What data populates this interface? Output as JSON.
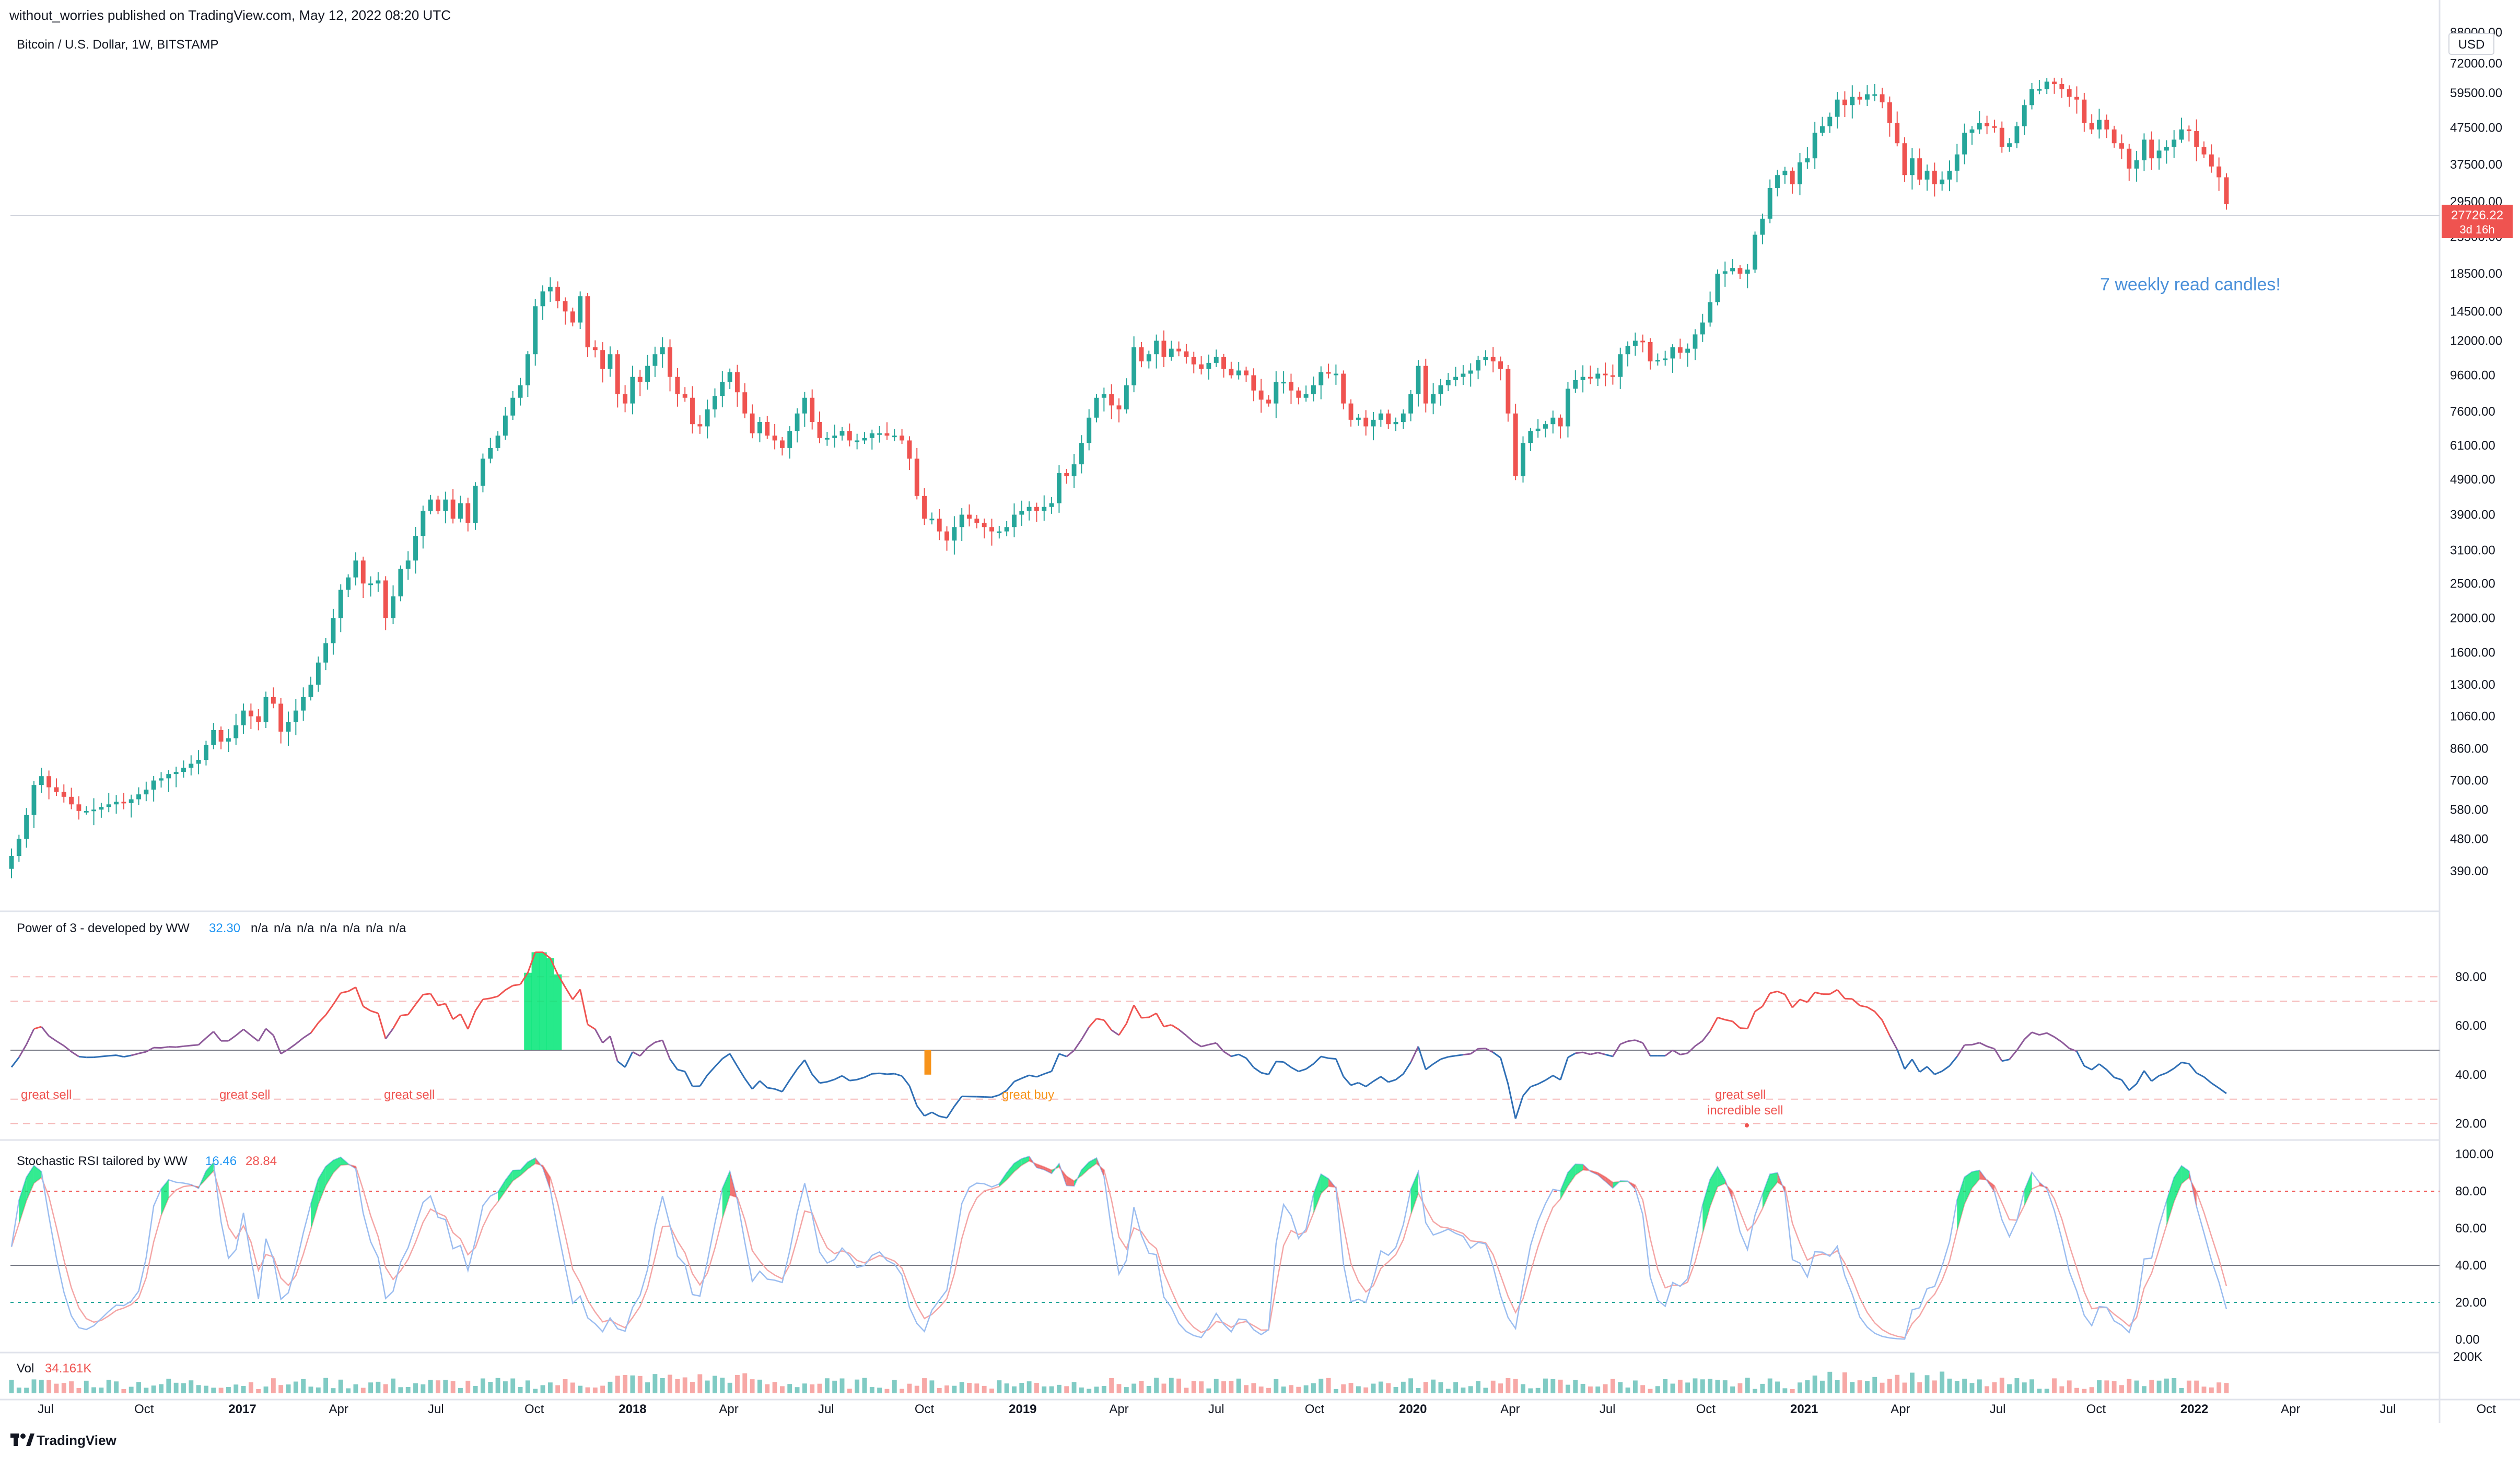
{
  "header": {
    "published": "without_worries published on TradingView.com, May 12, 2022 08:20 UTC",
    "symbol": "Bitcoin / U.S. Dollar, 1W, BITSTAMP",
    "currency": "USD"
  },
  "price_panel": {
    "last_price": "27726.22",
    "countdown": "3d 16h",
    "annotation": "7 weekly read candles!",
    "axis_labels": [
      "88000.00",
      "72000.00",
      "59500.00",
      "47500.00",
      "37500.00",
      "29500.00",
      "23500.00",
      "18500.00",
      "14500.00",
      "12000.00",
      "9600.00",
      "7600.00",
      "6100.00",
      "4900.00",
      "3900.00",
      "3100.00",
      "2500.00",
      "2000.00",
      "1600.00",
      "1300.00",
      "1060.00",
      "860.00",
      "700.00",
      "580.00",
      "480.00",
      "390.00"
    ]
  },
  "power_panel": {
    "title": "Power of 3 - developed by WW",
    "value": "32.30",
    "na": [
      "n/a",
      "n/a",
      "n/a",
      "n/a",
      "n/a",
      "n/a",
      "n/a"
    ],
    "axis_labels": [
      "80.00",
      "60.00",
      "40.00",
      "20.00"
    ],
    "annotations": {
      "sell1": "great sell",
      "sell2": "great sell",
      "sell3": "great sell",
      "buy": "great buy",
      "sell4": "great sell",
      "incredible": "incredible sell"
    }
  },
  "stoch_panel": {
    "title": "Stochastic RSI tailored by WW",
    "k": "16.46",
    "d": "28.84",
    "axis_labels": [
      "100.00",
      "80.00",
      "60.00",
      "40.00",
      "20.00",
      "0.00"
    ]
  },
  "volume_panel": {
    "title": "Vol",
    "value": "34.161K",
    "axis_label": "200K"
  },
  "time_axis": [
    "Jul",
    "Oct",
    "2017",
    "Apr",
    "Jul",
    "Oct",
    "2018",
    "Apr",
    "Jul",
    "Oct",
    "2019",
    "Apr",
    "Jul",
    "Oct",
    "2020",
    "Apr",
    "Jul",
    "Oct",
    "2021",
    "Apr",
    "Jul",
    "Oct",
    "2022",
    "Apr",
    "Jul",
    "Oct"
  ],
  "footer": {
    "brand": "TradingView"
  },
  "colors": {
    "up": "#26a69a",
    "down": "#ef5350",
    "accent": "#2962ff",
    "annotation": "#4a90d9",
    "buy": "#f7931a"
  },
  "chart_data": [
    {
      "type": "candlestick",
      "title": "Bitcoin / U.S. Dollar, 1W, BITSTAMP",
      "ylim": [
        350,
        88000
      ],
      "y_scale": "log",
      "x_start": "2016-05-30",
      "x_interval": "1W",
      "close": [
        430,
        480,
        560,
        680,
        720,
        670,
        650,
        630,
        600,
        575,
        575,
        580,
        590,
        600,
        610,
        605,
        620,
        640,
        660,
        700,
        710,
        730,
        740,
        760,
        780,
        800,
        880,
        970,
        900,
        920,
        1000,
        1100,
        1060,
        1020,
        1200,
        1150,
        960,
        1020,
        1100,
        1200,
        1300,
        1500,
        1700,
        2000,
        2400,
        2600,
        2900,
        2500,
        2500,
        2550,
        2000,
        2300,
        2750,
        2900,
        3400,
        4000,
        4300,
        4000,
        4300,
        3800,
        4200,
        3700,
        4700,
        5600,
        6000,
        6500,
        7400,
        8300,
        9000,
        11000,
        15000,
        16500,
        17000,
        15500,
        14500,
        13500,
        16000,
        11500,
        11300,
        10000,
        11000,
        8500,
        8000,
        9500,
        9200,
        10200,
        11000,
        11500,
        9500,
        8500,
        8300,
        7000,
        6900,
        7700,
        8400,
        9200,
        9800,
        8600,
        7500,
        6600,
        7100,
        6500,
        6300,
        6000,
        6700,
        7500,
        8300,
        7100,
        6400,
        6400,
        6500,
        6700,
        6300,
        6300,
        6400,
        6600,
        6600,
        6500,
        6500,
        6300,
        5600,
        4400,
        3800,
        3800,
        3500,
        3300,
        3600,
        3900,
        3800,
        3700,
        3600,
        3500,
        3500,
        3600,
        3900,
        4000,
        4100,
        4000,
        4100,
        4200,
        5100,
        5000,
        5400,
        6200,
        7300,
        8300,
        8500,
        7900,
        7700,
        9000,
        11500,
        10500,
        11000,
        12000,
        10800,
        11400,
        11200,
        10800,
        10300,
        10000,
        10400,
        10800,
        10000,
        9600,
        9900,
        9600,
        8700,
        8200,
        8000,
        9200,
        9200,
        8700,
        8300,
        8500,
        9000,
        9800,
        9700,
        9700,
        8000,
        7200,
        7300,
        6900,
        7200,
        7500,
        7000,
        7100,
        7500,
        8500,
        10200,
        8000,
        8500,
        9000,
        9300,
        9500,
        9700,
        9900,
        10600,
        10800,
        10500,
        10000,
        7500,
        5000,
        6200,
        6700,
        6800,
        7000,
        7300,
        6900,
        8800,
        9300,
        9500,
        9400,
        9700,
        9600,
        9500,
        11000,
        11600,
        12000,
        11900,
        10500,
        10600,
        10700,
        11500,
        11100,
        11400,
        12500,
        13500,
        15400,
        18500,
        18800,
        19200,
        18500,
        19000,
        23800,
        26400,
        32200,
        35000,
        36000,
        33000,
        38000,
        39000,
        46000,
        48000,
        51000,
        57000,
        55000,
        58000,
        57000,
        59000,
        59000,
        56000,
        49000,
        43000,
        35000,
        39000,
        34000,
        36000,
        33000,
        34000,
        36000,
        40000,
        46000,
        47000,
        49000,
        48000,
        47500,
        42000,
        43000,
        48000,
        55000,
        61000,
        61000,
        64000,
        63000,
        61000,
        58000,
        57000,
        49000,
        47000,
        50000,
        47000,
        43000,
        41500,
        36500,
        38500,
        44000,
        39000,
        41000,
        42000,
        44000,
        47000,
        46500,
        42000,
        40000,
        37000,
        34500,
        29000
      ]
    },
    {
      "type": "line",
      "title": "Power of 3 - developed by WW",
      "ylim": [
        15,
        95
      ],
      "current": 32.3,
      "levels": [
        80,
        70,
        50,
        30,
        20
      ],
      "annotations": [
        "great sell",
        "great sell",
        "great sell",
        "great buy",
        "great sell",
        "incredible sell"
      ]
    },
    {
      "type": "line",
      "title": "Stochastic RSI tailored by WW",
      "ylim": [
        0,
        100
      ],
      "k": 16.46,
      "d": 28.84,
      "levels": [
        80,
        40,
        20
      ]
    },
    {
      "type": "bar",
      "title": "Vol",
      "current": "34.161K",
      "axis_max": "200K"
    }
  ]
}
